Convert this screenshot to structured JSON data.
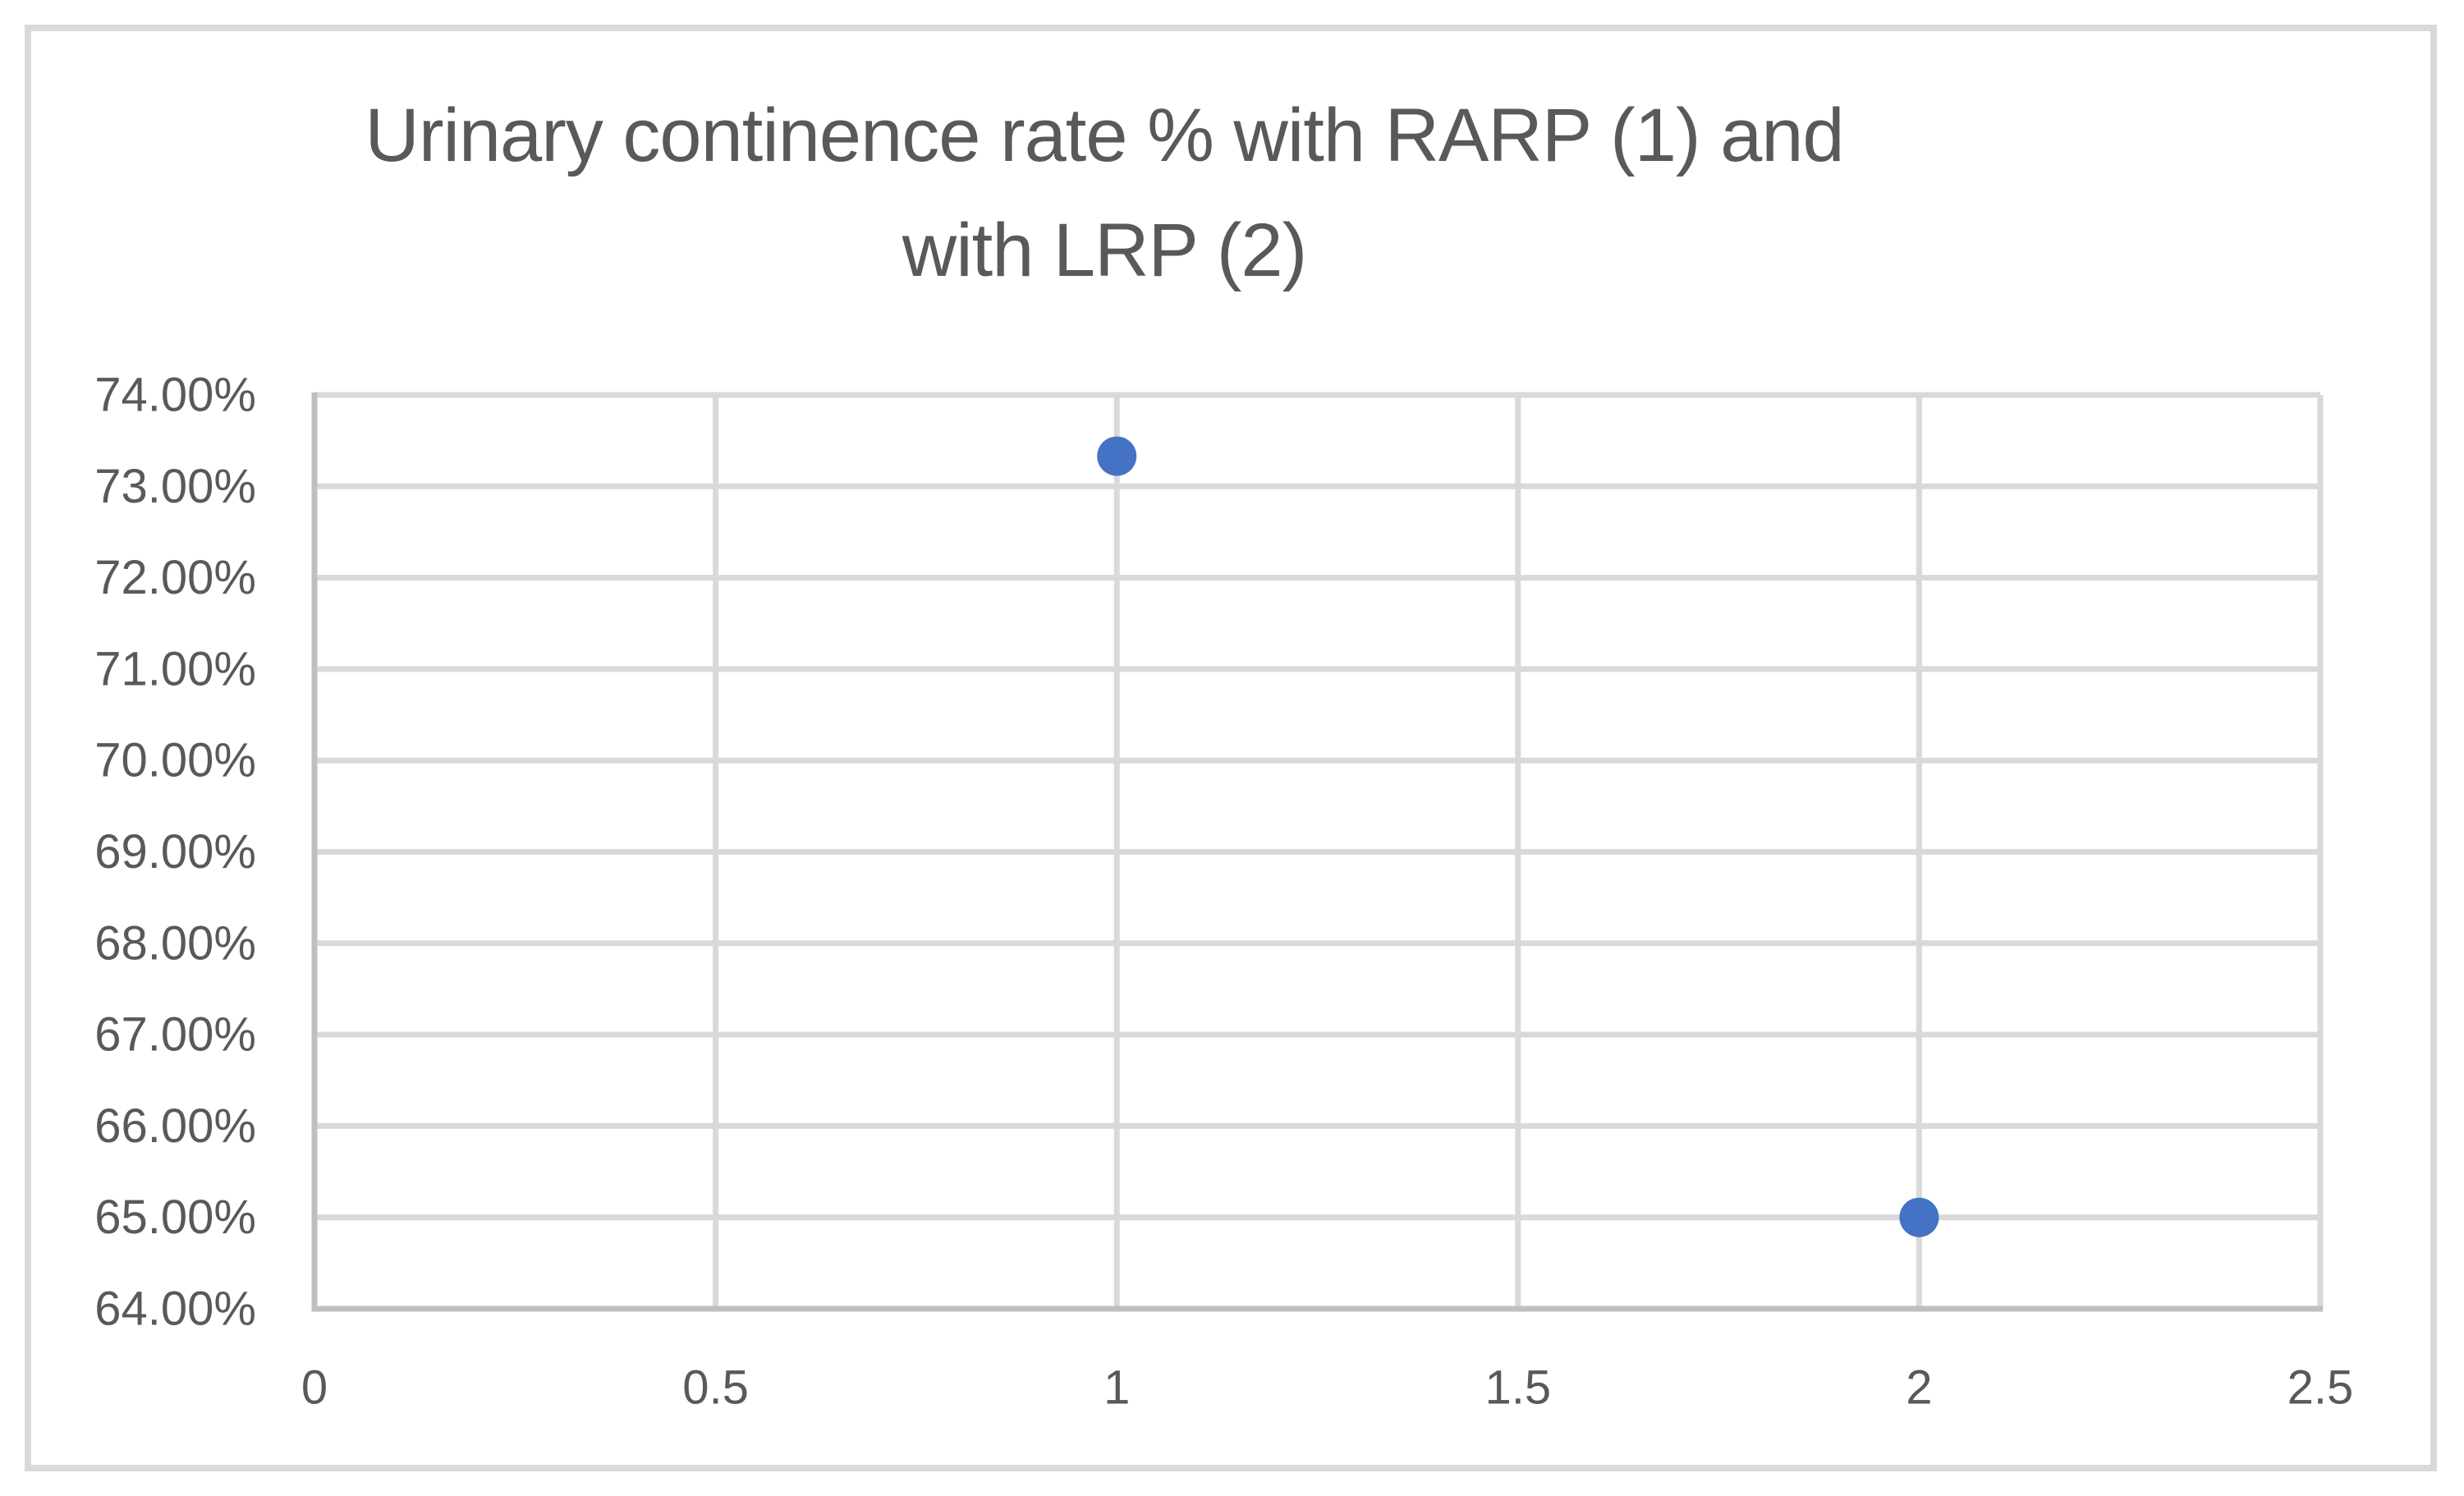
{
  "chart_data": {
    "type": "scatter",
    "title": "Urinary continence rate % with RARP (1) and with LRP (2)",
    "title_lines": [
      "Urinary continence rate % with RARP (1) and",
      "with LRP (2)"
    ],
    "xlabel": "",
    "ylabel": "",
    "xlim": [
      0,
      2.5
    ],
    "ylim": [
      64,
      74
    ],
    "grid": true,
    "legend_position": "none",
    "xticks": [
      {
        "value": 0,
        "label": "0"
      },
      {
        "value": 0.5,
        "label": "0.5"
      },
      {
        "value": 1,
        "label": "1"
      },
      {
        "value": 1.5,
        "label": "1.5"
      },
      {
        "value": 2,
        "label": "2"
      },
      {
        "value": 2.5,
        "label": "2.5"
      }
    ],
    "yticks": [
      {
        "value": 64,
        "label": "64.00%"
      },
      {
        "value": 65,
        "label": "65.00%"
      },
      {
        "value": 66,
        "label": "66.00%"
      },
      {
        "value": 67,
        "label": "67.00%"
      },
      {
        "value": 68,
        "label": "68.00%"
      },
      {
        "value": 69,
        "label": "69.00%"
      },
      {
        "value": 70,
        "label": "70.00%"
      },
      {
        "value": 71,
        "label": "71.00%"
      },
      {
        "value": 72,
        "label": "72.00%"
      },
      {
        "value": 73,
        "label": "73.00%"
      },
      {
        "value": 74,
        "label": "74.00%"
      }
    ],
    "points": [
      {
        "x": 1,
        "y": 73.33,
        "series": "RARP (1)"
      },
      {
        "x": 2,
        "y": 65.0,
        "series": "LRP (2)"
      }
    ],
    "colors": {
      "marker": "#4472C4",
      "gridline": "#D9D9D9",
      "axis_line": "#BFBFBF",
      "text": "#595959",
      "chart_border": "#D9D9D9",
      "background": "#FFFFFF"
    }
  }
}
